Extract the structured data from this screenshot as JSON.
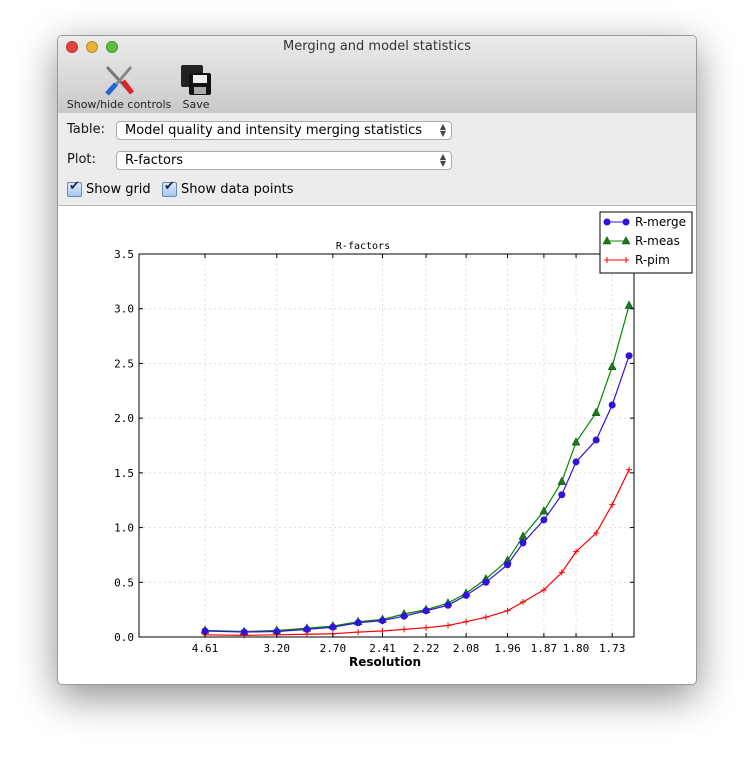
{
  "window": {
    "title": "Merging and model statistics"
  },
  "toolbar": {
    "show_hide_label": "Show/hide controls",
    "save_label": "Save"
  },
  "controls": {
    "table_label": "Table:",
    "table_value": "Model quality and intensity merging statistics",
    "plot_label": "Plot:",
    "plot_value": "R-factors",
    "show_grid_label": "Show grid",
    "show_grid": true,
    "show_points_label": "Show data points",
    "show_points": true
  },
  "chart_data": {
    "type": "line",
    "title": "R-factors",
    "xlabel": "Resolution",
    "ylabel": "",
    "x_scale": "inverse-square resolution (1/d^2), displayed as resolution",
    "x": [
      4.61,
      3.66,
      3.2,
      2.9,
      2.7,
      2.54,
      2.41,
      2.31,
      2.22,
      2.14,
      2.08,
      2.02,
      1.96,
      1.92,
      1.87,
      1.83,
      1.8,
      1.76,
      1.73,
      1.7
    ],
    "xticks": [
      "4.61",
      "3.20",
      "2.70",
      "2.41",
      "2.22",
      "2.08",
      "1.96",
      "1.87",
      "1.80",
      "1.73"
    ],
    "yticks": [
      "0.0",
      "0.5",
      "1.0",
      "1.5",
      "2.0",
      "2.5",
      "3.0",
      "3.5"
    ],
    "ylim": [
      0,
      3.5
    ],
    "grid": true,
    "legend": "top-right",
    "series": [
      {
        "name": "R-merge",
        "color": "#3311dd",
        "marker": "circle",
        "values": [
          0.055,
          0.045,
          0.05,
          0.07,
          0.09,
          0.13,
          0.15,
          0.19,
          0.24,
          0.29,
          0.38,
          0.5,
          0.66,
          0.86,
          1.07,
          1.3,
          1.6,
          1.8,
          2.12,
          2.57
        ]
      },
      {
        "name": "R-meas",
        "color": "#008800",
        "marker": "triangle",
        "values": [
          0.06,
          0.05,
          0.06,
          0.08,
          0.1,
          0.14,
          0.16,
          0.21,
          0.25,
          0.31,
          0.4,
          0.53,
          0.7,
          0.92,
          1.15,
          1.42,
          1.78,
          2.05,
          2.47,
          3.03
        ]
      },
      {
        "name": "R-pim",
        "color": "#ff0000",
        "marker": "plus",
        "values": [
          0.02,
          0.015,
          0.02,
          0.025,
          0.03,
          0.045,
          0.055,
          0.07,
          0.085,
          0.105,
          0.14,
          0.18,
          0.24,
          0.32,
          0.43,
          0.59,
          0.78,
          0.95,
          1.21,
          1.53
        ]
      }
    ]
  }
}
